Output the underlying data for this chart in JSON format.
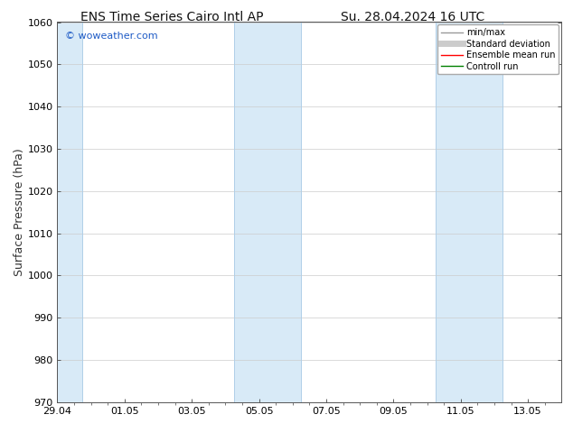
{
  "title_left": "ENS Time Series Cairo Intl AP",
  "title_right": "Su. 28.04.2024 16 UTC",
  "ylabel": "Surface Pressure (hPa)",
  "ylim": [
    970,
    1060
  ],
  "yticks": [
    970,
    980,
    990,
    1000,
    1010,
    1020,
    1030,
    1040,
    1050,
    1060
  ],
  "xlim": [
    0,
    15
  ],
  "x_tick_labels": [
    "29.04",
    "01.05",
    "03.05",
    "05.05",
    "07.05",
    "09.05",
    "11.05",
    "13.05"
  ],
  "x_tick_positions": [
    0,
    2,
    4,
    6,
    8,
    10,
    12,
    14
  ],
  "x_minor_ticks": [
    0.5,
    1,
    1.5,
    2,
    2.5,
    3,
    3.5,
    4,
    4.5,
    5,
    5.5,
    6,
    6.5,
    7,
    7.5,
    8,
    8.5,
    9,
    9.5,
    10,
    10.5,
    11,
    11.5,
    12,
    12.5,
    13,
    13.5,
    14,
    14.5
  ],
  "shaded_regions": [
    {
      "x_start": -0.25,
      "x_end": 0.75
    },
    {
      "x_start": 5.25,
      "x_end": 7.25
    },
    {
      "x_start": 11.25,
      "x_end": 13.25
    }
  ],
  "shaded_color": "#d8eaf7",
  "shaded_edge_color": "#b0cfe8",
  "bg_color": "#ffffff",
  "plot_bg_color": "#ffffff",
  "watermark_text": "© woweather.com",
  "watermark_color": "#1e5bc6",
  "legend_items": [
    {
      "label": "min/max",
      "color": "#999999",
      "lw": 1.0
    },
    {
      "label": "Standard deviation",
      "color": "#cccccc",
      "lw": 5
    },
    {
      "label": "Ensemble mean run",
      "color": "#ff0000",
      "lw": 1.0
    },
    {
      "label": "Controll run",
      "color": "#008000",
      "lw": 1.0
    }
  ],
  "title_fontsize": 10,
  "tick_fontsize": 8,
  "ylabel_fontsize": 9,
  "watermark_fontsize": 8,
  "legend_fontsize": 7
}
